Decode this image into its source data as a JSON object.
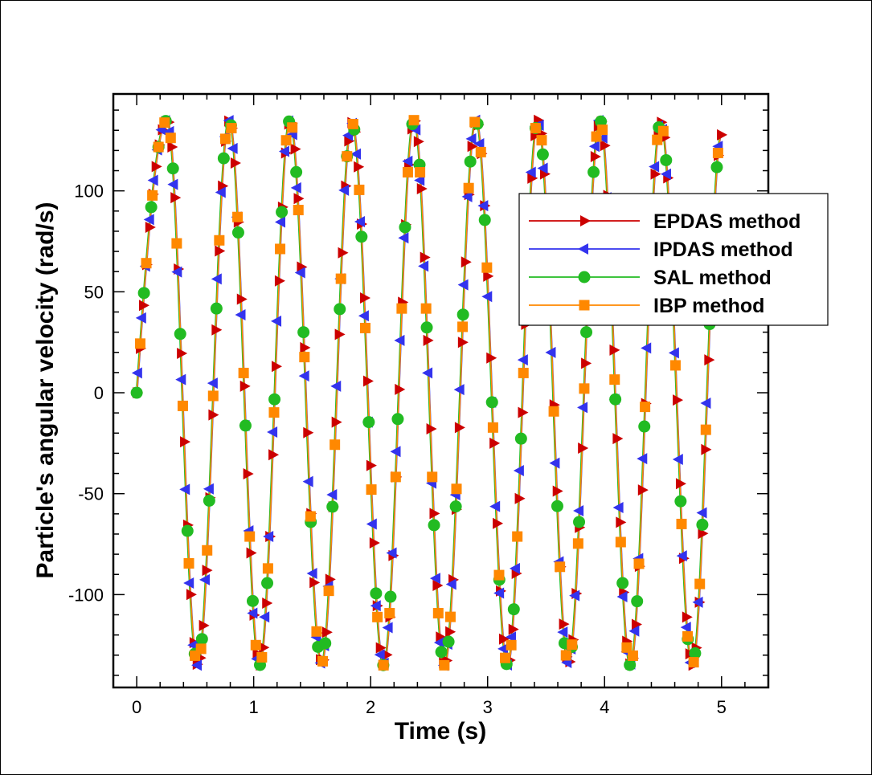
{
  "chart_data": {
    "type": "line",
    "title": "",
    "xlabel": "Time (s)",
    "ylabel": "Particle's angular velocity (rad/s)",
    "xlim": [
      -0.2,
      5.4
    ],
    "ylim": [
      -146,
      148
    ],
    "xticks": [
      0,
      1,
      2,
      3,
      4,
      5
    ],
    "yticks": [
      -100,
      -50,
      0,
      50,
      100
    ],
    "grid": false,
    "legend_position": "right",
    "signal": {
      "t_start": 0,
      "t_end": 5,
      "peaks": [
        {
          "t": 0.26,
          "value": 135
        },
        {
          "t": 0.52,
          "value": -135
        },
        {
          "t": 0.79,
          "value": 135
        },
        {
          "t": 1.05,
          "value": -135
        },
        {
          "t": 1.31,
          "value": 135
        },
        {
          "t": 1.58,
          "value": -134
        },
        {
          "t": 1.84,
          "value": 134
        },
        {
          "t": 2.11,
          "value": -135
        },
        {
          "t": 2.37,
          "value": 135
        },
        {
          "t": 2.63,
          "value": -135
        },
        {
          "t": 2.9,
          "value": 135
        },
        {
          "t": 3.17,
          "value": -135
        },
        {
          "t": 3.43,
          "value": 135
        },
        {
          "t": 3.69,
          "value": -134
        },
        {
          "t": 3.96,
          "value": 135
        },
        {
          "t": 4.22,
          "value": -135
        },
        {
          "t": 4.48,
          "value": 134
        },
        {
          "t": 4.75,
          "value": -135
        },
        {
          "t": 5.0,
          "value": 128
        }
      ]
    },
    "series": [
      {
        "name": "EPDAS method",
        "color": "#cc0000",
        "marker": "triangle-right",
        "marker_step": 0.027,
        "marker_offset": 0.0
      },
      {
        "name": "IPDAS method",
        "color": "#3333ee",
        "marker": "triangle-left",
        "marker_step": 0.034,
        "marker_offset": 0.012
      },
      {
        "name": "SAL method",
        "color": "#22bb22",
        "marker": "circle",
        "marker_step": 0.062,
        "marker_offset": 0.0
      },
      {
        "name": "IBP method",
        "color": "#ff8800",
        "marker": "square",
        "marker_step": 0.052,
        "marker_offset": 0.03
      }
    ]
  }
}
